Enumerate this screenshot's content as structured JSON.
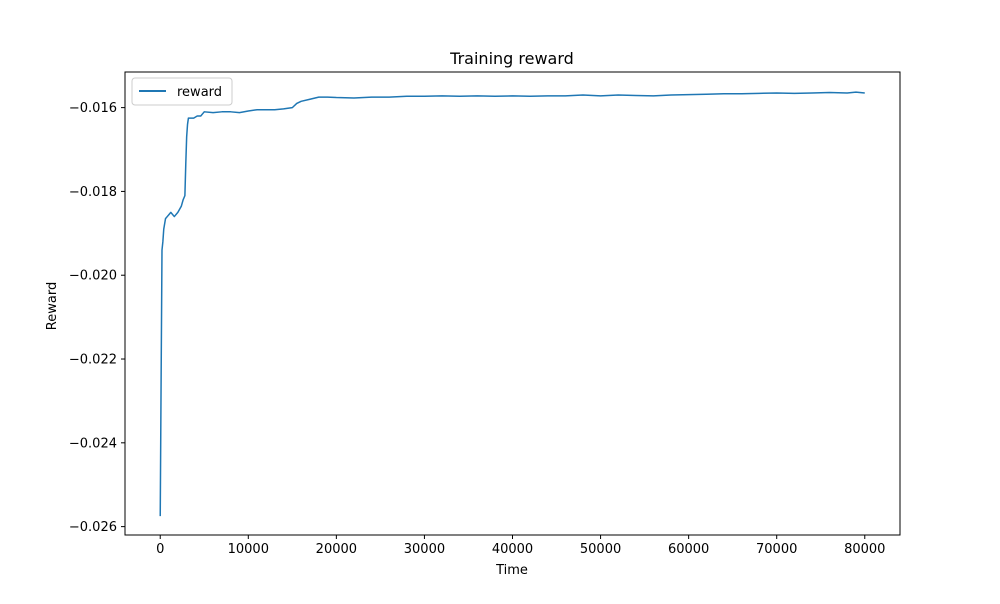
{
  "chart_data": {
    "type": "line",
    "title": "Training reward",
    "xlabel": "Time",
    "ylabel": "Reward",
    "xlim": [
      -4000,
      84000
    ],
    "ylim": [
      -0.0262,
      -0.01515
    ],
    "xticks": [
      0,
      10000,
      20000,
      30000,
      40000,
      50000,
      60000,
      70000,
      80000
    ],
    "xtick_labels": [
      "0",
      "10000",
      "20000",
      "30000",
      "40000",
      "50000",
      "60000",
      "70000",
      "80000"
    ],
    "yticks": [
      -0.026,
      -0.024,
      -0.022,
      -0.02,
      -0.018,
      -0.016
    ],
    "ytick_labels": [
      "−0.026",
      "−0.024",
      "−0.022",
      "−0.020",
      "−0.018",
      "−0.016"
    ],
    "grid": false,
    "legend": {
      "position": "top-left",
      "entries": [
        "reward"
      ]
    },
    "series": [
      {
        "name": "reward",
        "color": "#1f77b4",
        "x": [
          0,
          100,
          200,
          300,
          400,
          600,
          800,
          1000,
          1200,
          1600,
          2000,
          2400,
          2600,
          2800,
          2900,
          3000,
          3100,
          3200,
          3400,
          3800,
          4200,
          4600,
          5000,
          6000,
          7000,
          8000,
          9000,
          10000,
          11000,
          12000,
          13000,
          14000,
          15000,
          15500,
          16000,
          17000,
          18000,
          19000,
          20000,
          22000,
          24000,
          26000,
          28000,
          30000,
          32000,
          34000,
          36000,
          38000,
          40000,
          42000,
          44000,
          46000,
          48000,
          50000,
          52000,
          54000,
          56000,
          58000,
          60000,
          62000,
          64000,
          66000,
          68000,
          70000,
          72000,
          74000,
          76000,
          78000,
          79000,
          80000
        ],
        "values": [
          -0.02575,
          -0.0225,
          -0.0194,
          -0.0192,
          -0.0189,
          -0.01865,
          -0.0186,
          -0.01855,
          -0.0185,
          -0.0186,
          -0.0185,
          -0.01835,
          -0.0182,
          -0.0181,
          -0.01735,
          -0.0167,
          -0.0164,
          -0.01625,
          -0.01625,
          -0.01625,
          -0.0162,
          -0.0162,
          -0.0161,
          -0.01612,
          -0.0161,
          -0.0161,
          -0.01612,
          -0.01608,
          -0.01605,
          -0.01605,
          -0.01605,
          -0.01603,
          -0.016,
          -0.0159,
          -0.01585,
          -0.0158,
          -0.01575,
          -0.01575,
          -0.01576,
          -0.01577,
          -0.01575,
          -0.01575,
          -0.01573,
          -0.01573,
          -0.01572,
          -0.01573,
          -0.01572,
          -0.01573,
          -0.01572,
          -0.01573,
          -0.01572,
          -0.01572,
          -0.0157,
          -0.01572,
          -0.0157,
          -0.01571,
          -0.01572,
          -0.0157,
          -0.01569,
          -0.01568,
          -0.01567,
          -0.01567,
          -0.01566,
          -0.01565,
          -0.01566,
          -0.01565,
          -0.01564,
          -0.01565,
          -0.01563,
          -0.01565
        ]
      }
    ]
  }
}
